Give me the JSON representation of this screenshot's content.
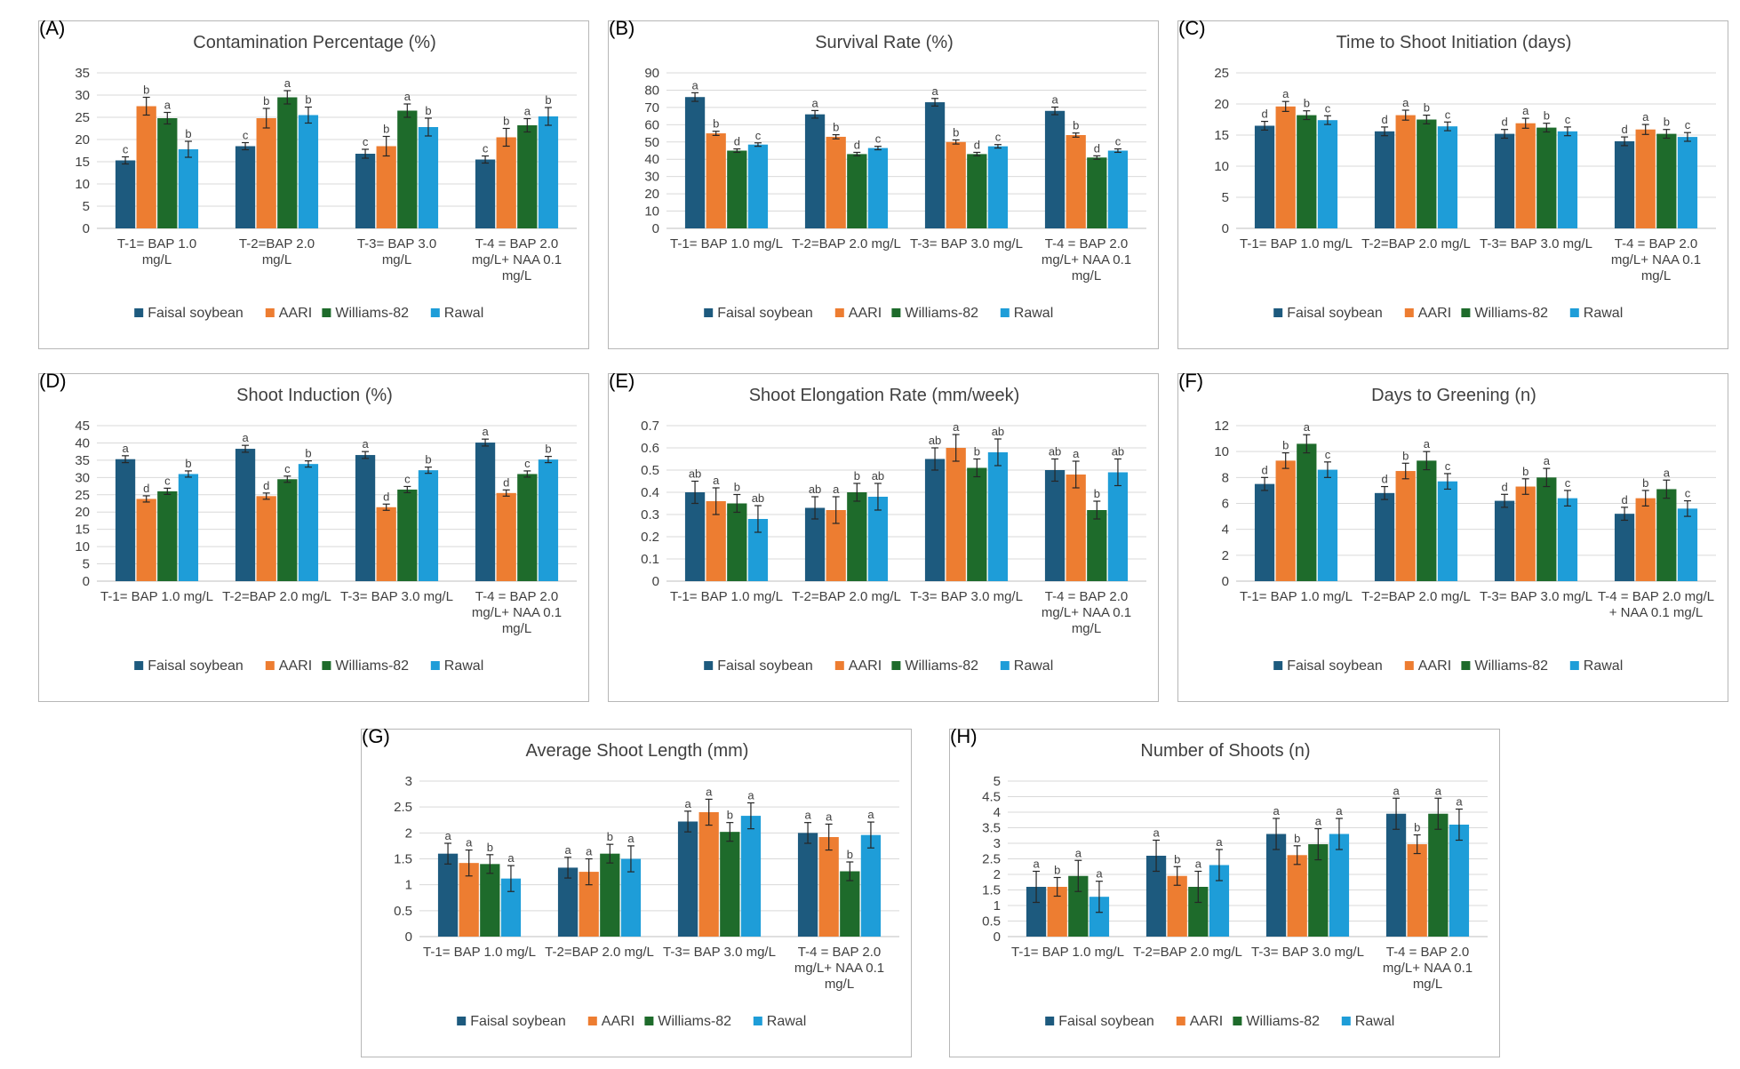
{
  "legend": [
    "Faisal soybean",
    "AARI",
    "Williams-82",
    "Rawal"
  ],
  "colors": {
    "Faisal soybean": "#1d5a7e",
    "AARI": "#ed7d31",
    "Williams-82": "#1e6b2b",
    "Rawal": "#1e9dd8"
  },
  "chart_data": [
    {
      "panel": "(A)",
      "type": "bar",
      "title": "Contamination Percentage (%)",
      "categories": [
        [
          "T-1= BAP 1.0",
          "mg/L"
        ],
        [
          "T-2=BAP 2.0",
          "mg/L"
        ],
        [
          "T-3= BAP 3.0",
          "mg/L"
        ],
        [
          "T-4 = BAP 2.0",
          "mg/L+ NAA 0.1",
          "mg/L"
        ]
      ],
      "ylim": [
        0,
        35
      ],
      "yticks": [
        0,
        5,
        10,
        15,
        20,
        25,
        30,
        35
      ],
      "series": [
        {
          "name": "Faisal soybean",
          "values": [
            15.3,
            18.5,
            16.8,
            15.5
          ],
          "errors": [
            0.8,
            0.8,
            1.0,
            0.8
          ],
          "letters": [
            "c",
            "c",
            "c",
            "c"
          ]
        },
        {
          "name": "AARI",
          "values": [
            27.5,
            24.8,
            18.5,
            20.5
          ],
          "errors": [
            2.0,
            2.2,
            2.2,
            2.0
          ],
          "letters": [
            "b",
            "b",
            "b",
            "b"
          ]
        },
        {
          "name": "Williams-82",
          "values": [
            24.8,
            29.5,
            26.5,
            23.2
          ],
          "errors": [
            1.3,
            1.5,
            1.5,
            1.5
          ],
          "letters": [
            "a",
            "a",
            "a",
            "a"
          ]
        },
        {
          "name": "Rawal",
          "values": [
            17.8,
            25.5,
            22.8,
            25.2
          ],
          "errors": [
            1.8,
            1.8,
            2.0,
            2.0
          ],
          "letters": [
            "b",
            "b",
            "b",
            "b"
          ]
        }
      ]
    },
    {
      "panel": "(B)",
      "type": "bar",
      "title": "Survival Rate (%)",
      "categories": [
        [
          "T-1= BAP 1.0 mg/L"
        ],
        [
          "T-2=BAP 2.0   mg/L"
        ],
        [
          "T-3=   BAP 3.0 mg/L"
        ],
        [
          "T-4 = BAP 2.0",
          "mg/L+ NAA 0.1",
          "mg/L"
        ]
      ],
      "ylim": [
        0,
        90
      ],
      "yticks": [
        0,
        10,
        20,
        30,
        40,
        50,
        60,
        70,
        80,
        90
      ],
      "series": [
        {
          "name": "Faisal soybean",
          "values": [
            76,
            66,
            73,
            68
          ],
          "errors": [
            2.5,
            2.2,
            2.2,
            2.2
          ],
          "letters": [
            "a",
            "a",
            "a",
            "a"
          ]
        },
        {
          "name": "AARI",
          "values": [
            55,
            53,
            50,
            54
          ],
          "errors": [
            1.2,
            1.2,
            1.2,
            1.2
          ],
          "letters": [
            "b",
            "b",
            "b",
            "b"
          ]
        },
        {
          "name": "Williams-82",
          "values": [
            45,
            43,
            43,
            41
          ],
          "errors": [
            1.0,
            1.0,
            1.0,
            1.0
          ],
          "letters": [
            "d",
            "d",
            "d",
            "d"
          ]
        },
        {
          "name": "Rawal",
          "values": [
            48.5,
            46.5,
            47.5,
            45
          ],
          "errors": [
            1.0,
            1.0,
            1.0,
            1.0
          ],
          "letters": [
            "c",
            "c",
            "c",
            "c"
          ]
        }
      ]
    },
    {
      "panel": "(C)",
      "type": "bar",
      "title": "Time to Shoot Initiation (days)",
      "categories": [
        [
          "T-1= BAP 1.0 mg/L"
        ],
        [
          "T-2=BAP 2.0   mg/L"
        ],
        [
          "T-3=   BAP 3.0 mg/L"
        ],
        [
          "T-4 = BAP 2.0",
          "mg/L+ NAA 0.1",
          "mg/L"
        ]
      ],
      "ylim": [
        0,
        25
      ],
      "yticks": [
        0,
        5,
        10,
        15,
        20,
        25
      ],
      "series": [
        {
          "name": "Faisal soybean",
          "values": [
            16.5,
            15.6,
            15.2,
            14.0
          ],
          "errors": [
            0.7,
            0.7,
            0.7,
            0.7
          ],
          "letters": [
            "d",
            "d",
            "d",
            "d"
          ]
        },
        {
          "name": "AARI",
          "values": [
            19.6,
            18.2,
            16.9,
            15.9
          ],
          "errors": [
            0.8,
            0.8,
            0.8,
            0.8
          ],
          "letters": [
            "a",
            "a",
            "a",
            "a"
          ]
        },
        {
          "name": "Williams-82",
          "values": [
            18.2,
            17.5,
            16.2,
            15.2
          ],
          "errors": [
            0.7,
            0.7,
            0.7,
            0.7
          ],
          "letters": [
            "b",
            "b",
            "b",
            "b"
          ]
        },
        {
          "name": "Rawal",
          "values": [
            17.4,
            16.4,
            15.6,
            14.7
          ],
          "errors": [
            0.7,
            0.7,
            0.7,
            0.7
          ],
          "letters": [
            "c",
            "c",
            "c",
            "c"
          ]
        }
      ]
    },
    {
      "panel": "(D)",
      "type": "bar",
      "title": "Shoot Induction (%)",
      "categories": [
        [
          "T-1= BAP 1.0 mg/L"
        ],
        [
          "T-2=BAP 2.0   mg/L"
        ],
        [
          "T-3=   BAP 3.0 mg/L"
        ],
        [
          "T-4 = BAP 2.0",
          "mg/L+ NAA 0.1",
          "mg/L"
        ]
      ],
      "ylim": [
        0,
        45
      ],
      "yticks": [
        0,
        5,
        10,
        15,
        20,
        25,
        30,
        35,
        40,
        45
      ],
      "series": [
        {
          "name": "Faisal soybean",
          "values": [
            35.3,
            38.3,
            36.5,
            40.1
          ],
          "errors": [
            1.0,
            1.0,
            1.0,
            1.0
          ],
          "letters": [
            "a",
            "a",
            "a",
            "a"
          ]
        },
        {
          "name": "AARI",
          "values": [
            23.8,
            24.6,
            21.4,
            25.5
          ],
          "errors": [
            0.9,
            0.9,
            0.9,
            0.9
          ],
          "letters": [
            "d",
            "d",
            "d",
            "d"
          ]
        },
        {
          "name": "Williams-82",
          "values": [
            26.0,
            29.5,
            26.5,
            31.0
          ],
          "errors": [
            0.9,
            0.9,
            0.9,
            0.9
          ],
          "letters": [
            "c",
            "c",
            "c",
            "c"
          ]
        },
        {
          "name": "Rawal",
          "values": [
            31.0,
            33.9,
            32.1,
            35.2
          ],
          "errors": [
            0.9,
            0.9,
            0.9,
            0.9
          ],
          "letters": [
            "b",
            "b",
            "b",
            "b"
          ]
        }
      ]
    },
    {
      "panel": "(E)",
      "type": "bar",
      "title": "Shoot Elongation Rate (mm/week)",
      "categories": [
        [
          "T-1= BAP 1.0 mg/L"
        ],
        [
          "T-2=BAP 2.0   mg/L"
        ],
        [
          "T-3=   BAP 3.0 mg/L"
        ],
        [
          "T-4 = BAP 2.0",
          "mg/L+ NAA 0.1",
          "mg/L"
        ]
      ],
      "ylim": [
        0,
        0.7
      ],
      "yticks": [
        0,
        0.1,
        0.2,
        0.3,
        0.4,
        0.5,
        0.6,
        0.7
      ],
      "series": [
        {
          "name": "Faisal soybean",
          "values": [
            0.4,
            0.33,
            0.55,
            0.5
          ],
          "errors": [
            0.05,
            0.05,
            0.05,
            0.05
          ],
          "letters": [
            "ab",
            "ab",
            "ab",
            "ab"
          ]
        },
        {
          "name": "AARI",
          "values": [
            0.36,
            0.32,
            0.6,
            0.48
          ],
          "errors": [
            0.06,
            0.06,
            0.06,
            0.06
          ],
          "letters": [
            "a",
            "a",
            "a",
            "a"
          ]
        },
        {
          "name": "Williams-82",
          "values": [
            0.35,
            0.4,
            0.51,
            0.32
          ],
          "errors": [
            0.04,
            0.04,
            0.04,
            0.04
          ],
          "letters": [
            "b",
            "b",
            "b",
            "b"
          ]
        },
        {
          "name": "Rawal",
          "values": [
            0.28,
            0.38,
            0.58,
            0.49
          ],
          "errors": [
            0.06,
            0.06,
            0.06,
            0.06
          ],
          "letters": [
            "ab",
            "ab",
            "ab",
            "ab"
          ]
        }
      ]
    },
    {
      "panel": "(F)",
      "type": "bar",
      "title": "Days to Greening (n)",
      "categories": [
        [
          "T-1= BAP 1.0 mg/L"
        ],
        [
          "T-2=BAP 2.0   mg/L"
        ],
        [
          "T-3=   BAP 3.0 mg/L"
        ],
        [
          "T-4 = BAP 2.0 mg/L",
          "+ NAA 0.1 mg/L"
        ]
      ],
      "ylim": [
        0,
        12
      ],
      "yticks": [
        0,
        2,
        4,
        6,
        8,
        10,
        12
      ],
      "series": [
        {
          "name": "Faisal soybean",
          "values": [
            7.5,
            6.8,
            6.2,
            5.2
          ],
          "errors": [
            0.5,
            0.5,
            0.5,
            0.5
          ],
          "letters": [
            "d",
            "d",
            "d",
            "d"
          ]
        },
        {
          "name": "AARI",
          "values": [
            9.3,
            8.5,
            7.3,
            6.4
          ],
          "errors": [
            0.6,
            0.6,
            0.6,
            0.6
          ],
          "letters": [
            "b",
            "b",
            "b",
            "b"
          ]
        },
        {
          "name": "Williams-82",
          "values": [
            10.6,
            9.3,
            8.0,
            7.1
          ],
          "errors": [
            0.7,
            0.7,
            0.7,
            0.7
          ],
          "letters": [
            "a",
            "a",
            "a",
            "a"
          ]
        },
        {
          "name": "Rawal",
          "values": [
            8.6,
            7.7,
            6.4,
            5.6
          ],
          "errors": [
            0.6,
            0.6,
            0.6,
            0.6
          ],
          "letters": [
            "c",
            "c",
            "c",
            "c"
          ]
        }
      ]
    },
    {
      "panel": "(G)",
      "type": "bar",
      "title": "Average Shoot Length (mm)",
      "categories": [
        [
          "T-1= BAP 1.0 mg/L"
        ],
        [
          "T-2=BAP 2.0   mg/L"
        ],
        [
          "T-3= BAP 3.0 mg/L"
        ],
        [
          "T-4 = BAP 2.0",
          "mg/L+ NAA 0.1",
          "mg/L"
        ]
      ],
      "ylim": [
        0,
        3
      ],
      "yticks": [
        0,
        0.5,
        1,
        1.5,
        2,
        2.5,
        3
      ],
      "series": [
        {
          "name": "Faisal soybean",
          "values": [
            1.6,
            1.33,
            2.22,
            2.0
          ],
          "errors": [
            0.2,
            0.2,
            0.2,
            0.2
          ],
          "letters": [
            "a",
            "a",
            "a",
            "a"
          ]
        },
        {
          "name": "AARI",
          "values": [
            1.42,
            1.25,
            2.4,
            1.92
          ],
          "errors": [
            0.25,
            0.25,
            0.25,
            0.25
          ],
          "letters": [
            "a",
            "a",
            "a",
            "a"
          ]
        },
        {
          "name": "Williams-82",
          "values": [
            1.4,
            1.6,
            2.02,
            1.26
          ],
          "errors": [
            0.18,
            0.18,
            0.18,
            0.18
          ],
          "letters": [
            "b",
            "b",
            "b",
            "b"
          ]
        },
        {
          "name": "Rawal",
          "values": [
            1.12,
            1.5,
            2.33,
            1.96
          ],
          "errors": [
            0.25,
            0.25,
            0.25,
            0.25
          ],
          "letters": [
            "a",
            "a",
            "a",
            "a"
          ]
        }
      ]
    },
    {
      "panel": "(H)",
      "type": "bar",
      "title": "Number of Shoots (n)",
      "categories": [
        [
          "T-1= BAP 1.0 mg/L"
        ],
        [
          "T-2=BAP 2.0   mg/L"
        ],
        [
          "T-3=   BAP 3.0 mg/L"
        ],
        [
          "T-4 = BAP 2.0",
          "mg/L+ NAA 0.1",
          "mg/L"
        ]
      ],
      "ylim": [
        0,
        5
      ],
      "yticks": [
        0,
        0.5,
        1,
        1.5,
        2,
        2.5,
        3,
        3.5,
        4,
        4.5,
        5
      ],
      "series": [
        {
          "name": "Faisal soybean",
          "values": [
            1.6,
            2.6,
            3.3,
            3.95
          ],
          "errors": [
            0.5,
            0.5,
            0.5,
            0.5
          ],
          "letters": [
            "a",
            "a",
            "a",
            "a"
          ]
        },
        {
          "name": "AARI",
          "values": [
            1.6,
            1.95,
            2.62,
            2.97
          ],
          "errors": [
            0.3,
            0.3,
            0.3,
            0.3
          ],
          "letters": [
            "b",
            "b",
            "b",
            "b"
          ]
        },
        {
          "name": "Williams-82",
          "values": [
            1.95,
            1.6,
            2.97,
            3.95
          ],
          "errors": [
            0.5,
            0.5,
            0.5,
            0.5
          ],
          "letters": [
            "a",
            "a",
            "a",
            "a"
          ]
        },
        {
          "name": "Rawal",
          "values": [
            1.28,
            2.3,
            3.3,
            3.6
          ],
          "errors": [
            0.5,
            0.5,
            0.5,
            0.5
          ],
          "letters": [
            "a",
            "a",
            "a",
            "a"
          ]
        }
      ]
    }
  ]
}
